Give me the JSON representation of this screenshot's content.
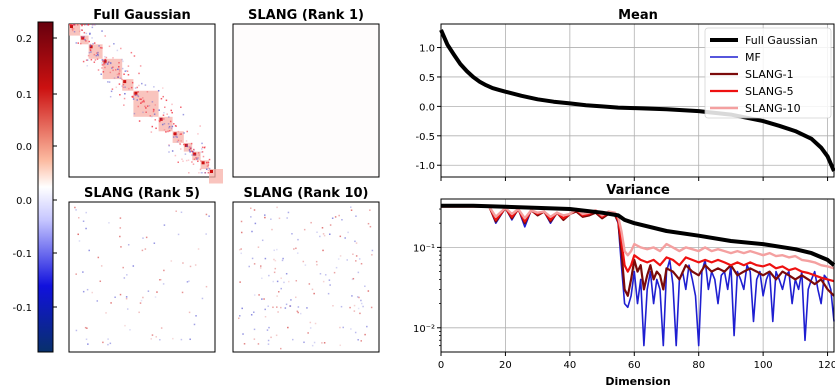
{
  "colorbar": {
    "ticks": [
      "0.2",
      "0.1",
      "0.0",
      "0.0",
      "-0.1",
      "-0.1"
    ],
    "colors": {
      "top": "#67000d",
      "mid": "#ffffff",
      "bottom": "#08306b"
    }
  },
  "heatmaps": [
    {
      "title": "Full Gaussian"
    },
    {
      "title": "SLANG (Rank 1)"
    },
    {
      "title": "SLANG (Rank 5)"
    },
    {
      "title": "SLANG (Rank 10)"
    }
  ],
  "chart_data": [
    {
      "type": "line",
      "title": "Mean",
      "xlim": [
        0,
        122
      ],
      "ylim": [
        -1.2,
        1.4
      ],
      "yticks": [
        "1.0",
        "0.5",
        "0.0",
        "-0.5",
        "-1.0"
      ],
      "xticks": [
        "0",
        "20",
        "40",
        "60",
        "80",
        "100",
        "120"
      ],
      "grid": true,
      "legend": "top-right",
      "series": [
        {
          "name": "Full Gaussian",
          "color": "#000000",
          "x": [
            0,
            2,
            4,
            6,
            8,
            10,
            12,
            14,
            16,
            18,
            20,
            25,
            30,
            35,
            40,
            45,
            50,
            55,
            60,
            70,
            80,
            90,
            100,
            105,
            110,
            115,
            118,
            120,
            122
          ],
          "y": [
            1.3,
            1.05,
            0.88,
            0.72,
            0.6,
            0.5,
            0.42,
            0.36,
            0.31,
            0.28,
            0.25,
            0.18,
            0.12,
            0.08,
            0.05,
            0.02,
            0.0,
            -0.02,
            -0.03,
            -0.05,
            -0.08,
            -0.14,
            -0.25,
            -0.33,
            -0.42,
            -0.55,
            -0.7,
            -0.85,
            -1.1
          ]
        },
        {
          "name": "MF",
          "color": "#1f1fd1"
        },
        {
          "name": "SLANG-1",
          "color": "#7b0a0a"
        },
        {
          "name": "SLANG-5",
          "color": "#ee1111"
        },
        {
          "name": "SLANG-10",
          "color": "#f4a0a0"
        }
      ]
    },
    {
      "type": "line",
      "title": "Variance",
      "xlabel": "Dimension",
      "yscale": "log",
      "xlim": [
        0,
        122
      ],
      "ylim": [
        0.005,
        0.4
      ],
      "yticks": [
        "10⁻¹",
        "10⁻²"
      ],
      "xticks": [
        "0",
        "20",
        "40",
        "60",
        "80",
        "100",
        "120"
      ],
      "grid": true,
      "series": [
        {
          "name": "Full Gaussian",
          "color": "#000000",
          "x": [
            0,
            10,
            20,
            30,
            40,
            50,
            55,
            57,
            60,
            70,
            80,
            90,
            100,
            110,
            115,
            120,
            122
          ],
          "y": [
            0.33,
            0.33,
            0.32,
            0.31,
            0.3,
            0.27,
            0.25,
            0.22,
            0.2,
            0.16,
            0.14,
            0.12,
            0.11,
            0.095,
            0.085,
            0.07,
            0.06
          ]
        },
        {
          "name": "MF",
          "color": "#1f1fd1",
          "x": [
            0,
            10,
            15,
            17,
            20,
            22,
            24,
            26,
            28,
            30,
            32,
            34,
            36,
            38,
            40,
            42,
            44,
            46,
            48,
            50,
            52,
            54,
            55,
            56,
            57,
            58,
            59,
            60,
            61,
            62,
            63,
            64,
            65,
            66,
            67,
            68,
            69,
            70,
            71,
            72,
            73,
            74,
            75,
            76,
            77,
            78,
            79,
            80,
            81,
            82,
            83,
            84,
            85,
            86,
            87,
            88,
            89,
            90,
            91,
            92,
            93,
            94,
            95,
            96,
            97,
            98,
            99,
            100,
            101,
            102,
            103,
            104,
            105,
            106,
            107,
            108,
            109,
            110,
            111,
            112,
            113,
            114,
            115,
            116,
            117,
            118,
            119,
            120,
            121,
            122
          ],
          "y": [
            0.32,
            0.32,
            0.32,
            0.2,
            0.31,
            0.22,
            0.3,
            0.18,
            0.29,
            0.25,
            0.28,
            0.2,
            0.27,
            0.22,
            0.26,
            0.28,
            0.24,
            0.25,
            0.27,
            0.23,
            0.26,
            0.25,
            0.2,
            0.06,
            0.02,
            0.018,
            0.025,
            0.05,
            0.02,
            0.04,
            0.006,
            0.03,
            0.05,
            0.02,
            0.04,
            0.03,
            0.006,
            0.05,
            0.07,
            0.035,
            0.006,
            0.04,
            0.05,
            0.03,
            0.06,
            0.04,
            0.025,
            0.006,
            0.05,
            0.07,
            0.03,
            0.05,
            0.04,
            0.02,
            0.045,
            0.05,
            0.03,
            0.06,
            0.008,
            0.05,
            0.04,
            0.03,
            0.06,
            0.05,
            0.012,
            0.04,
            0.05,
            0.025,
            0.04,
            0.05,
            0.012,
            0.05,
            0.04,
            0.03,
            0.045,
            0.05,
            0.02,
            0.04,
            0.03,
            0.05,
            0.007,
            0.03,
            0.04,
            0.05,
            0.03,
            0.02,
            0.045,
            0.04,
            0.03,
            0.012
          ]
        },
        {
          "name": "SLANG-1",
          "color": "#7b0a0a",
          "x": [
            0,
            10,
            15,
            17,
            20,
            22,
            24,
            26,
            28,
            30,
            32,
            34,
            36,
            38,
            40,
            42,
            44,
            46,
            48,
            50,
            52,
            54,
            55,
            56,
            57,
            58,
            59,
            60,
            61,
            62,
            63,
            64,
            65,
            66,
            67,
            68,
            69,
            70,
            72,
            74,
            76,
            78,
            80,
            82,
            84,
            86,
            88,
            90,
            92,
            94,
            96,
            98,
            100,
            102,
            104,
            106,
            108,
            110,
            112,
            114,
            116,
            118,
            120,
            122
          ],
          "y": [
            0.32,
            0.32,
            0.32,
            0.21,
            0.31,
            0.23,
            0.3,
            0.2,
            0.29,
            0.25,
            0.28,
            0.21,
            0.27,
            0.22,
            0.26,
            0.28,
            0.24,
            0.25,
            0.27,
            0.23,
            0.26,
            0.25,
            0.21,
            0.09,
            0.03,
            0.025,
            0.04,
            0.07,
            0.05,
            0.06,
            0.03,
            0.045,
            0.06,
            0.04,
            0.05,
            0.045,
            0.03,
            0.055,
            0.05,
            0.04,
            0.06,
            0.05,
            0.045,
            0.06,
            0.05,
            0.055,
            0.05,
            0.06,
            0.045,
            0.05,
            0.055,
            0.05,
            0.045,
            0.05,
            0.04,
            0.05,
            0.045,
            0.04,
            0.045,
            0.04,
            0.035,
            0.04,
            0.03,
            0.025
          ]
        },
        {
          "name": "SLANG-5",
          "color": "#ee1111",
          "x": [
            0,
            10,
            15,
            17,
            20,
            22,
            24,
            26,
            28,
            30,
            32,
            34,
            36,
            38,
            40,
            42,
            44,
            46,
            48,
            50,
            52,
            54,
            55,
            56,
            57,
            58,
            59,
            60,
            62,
            64,
            66,
            68,
            70,
            72,
            74,
            76,
            78,
            80,
            82,
            84,
            86,
            88,
            90,
            92,
            94,
            96,
            98,
            100,
            102,
            104,
            106,
            108,
            110,
            112,
            114,
            116,
            118,
            120,
            122
          ],
          "y": [
            0.32,
            0.32,
            0.32,
            0.22,
            0.31,
            0.24,
            0.3,
            0.21,
            0.29,
            0.26,
            0.28,
            0.22,
            0.27,
            0.23,
            0.26,
            0.29,
            0.25,
            0.26,
            0.28,
            0.24,
            0.27,
            0.26,
            0.22,
            0.12,
            0.06,
            0.05,
            0.06,
            0.08,
            0.07,
            0.065,
            0.07,
            0.06,
            0.075,
            0.07,
            0.06,
            0.075,
            0.07,
            0.065,
            0.07,
            0.065,
            0.07,
            0.065,
            0.06,
            0.065,
            0.06,
            0.065,
            0.06,
            0.058,
            0.062,
            0.055,
            0.058,
            0.052,
            0.055,
            0.05,
            0.048,
            0.045,
            0.042,
            0.04,
            0.038
          ]
        },
        {
          "name": "SLANG-10",
          "color": "#f4a0a0",
          "x": [
            0,
            10,
            15,
            17,
            20,
            22,
            24,
            26,
            28,
            30,
            32,
            34,
            36,
            38,
            40,
            42,
            44,
            46,
            48,
            50,
            52,
            54,
            55,
            56,
            57,
            58,
            59,
            60,
            62,
            64,
            66,
            68,
            70,
            72,
            74,
            76,
            78,
            80,
            82,
            84,
            86,
            88,
            90,
            92,
            94,
            96,
            98,
            100,
            102,
            104,
            106,
            108,
            110,
            112,
            114,
            116,
            118,
            120,
            122
          ],
          "y": [
            0.32,
            0.32,
            0.32,
            0.24,
            0.31,
            0.26,
            0.3,
            0.23,
            0.29,
            0.27,
            0.28,
            0.24,
            0.27,
            0.25,
            0.26,
            0.3,
            0.26,
            0.27,
            0.29,
            0.25,
            0.28,
            0.27,
            0.24,
            0.16,
            0.09,
            0.08,
            0.09,
            0.11,
            0.1,
            0.095,
            0.1,
            0.09,
            0.11,
            0.1,
            0.09,
            0.1,
            0.095,
            0.09,
            0.1,
            0.09,
            0.095,
            0.09,
            0.085,
            0.09,
            0.085,
            0.09,
            0.085,
            0.08,
            0.085,
            0.078,
            0.08,
            0.075,
            0.078,
            0.07,
            0.068,
            0.065,
            0.06,
            0.058,
            0.055
          ]
        }
      ]
    }
  ]
}
